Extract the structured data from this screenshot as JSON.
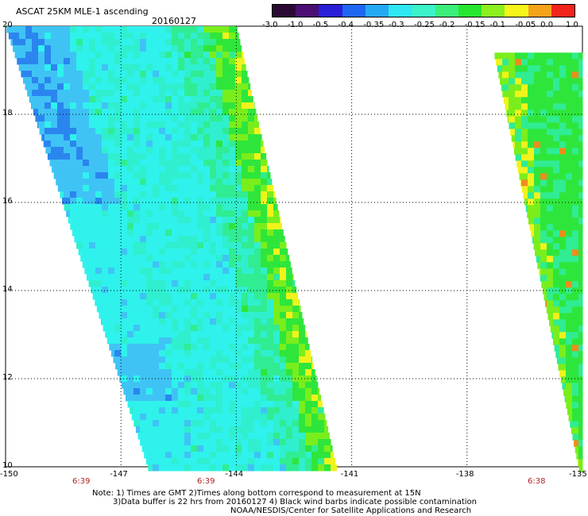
{
  "header": {
    "product_title": "ASCAT 25KM MLE-1 ascending",
    "date": "20160127"
  },
  "colorbar": {
    "labels": [
      "-3.0",
      "-1.0",
      "-0.5",
      "-0.4",
      "-0.35",
      "-0.3",
      "-0.25",
      "-0.2",
      "-0.15",
      "-0.1",
      "-0.05",
      "0.0",
      "1.0"
    ],
    "colors": [
      "#2a0a33",
      "#4b0f73",
      "#2a1fd6",
      "#1f67f2",
      "#26a9f5",
      "#2ee7f2",
      "#3cf2c8",
      "#3bee7a",
      "#27e630",
      "#8bf01e",
      "#f5f51a",
      "#f5a31a",
      "#f0241a"
    ]
  },
  "map": {
    "lat_labels": [
      "20",
      "18",
      "16",
      "14",
      "12",
      "10"
    ],
    "lon_labels": [
      "-150",
      "-147",
      "-144",
      "-141",
      "-138",
      "-135"
    ],
    "pass_times": [
      "6:39",
      "6:39",
      "6:38"
    ],
    "swath_colors": {
      "deep_blue": "#2a86ee",
      "blue": "#3fc3f5",
      "cyan": "#2ff2ec",
      "aqua": "#2fefcf",
      "green_cyan": "#30ec92",
      "green": "#2ee63b",
      "lime": "#7aee1c",
      "yellow": "#f0f31b",
      "orange": "#f08c1a"
    }
  },
  "footer": {
    "note_line1": "Note: 1) Times are GMT 2)Times along bottom correspond to measurement at 15N",
    "note_line2": "3)Data buffer is 22 hrs from 20160127 4) Black wind barbs indicate possible contamination",
    "credit": "NOAA/NESDIS/Center for Satellite Applications and Research"
  }
}
